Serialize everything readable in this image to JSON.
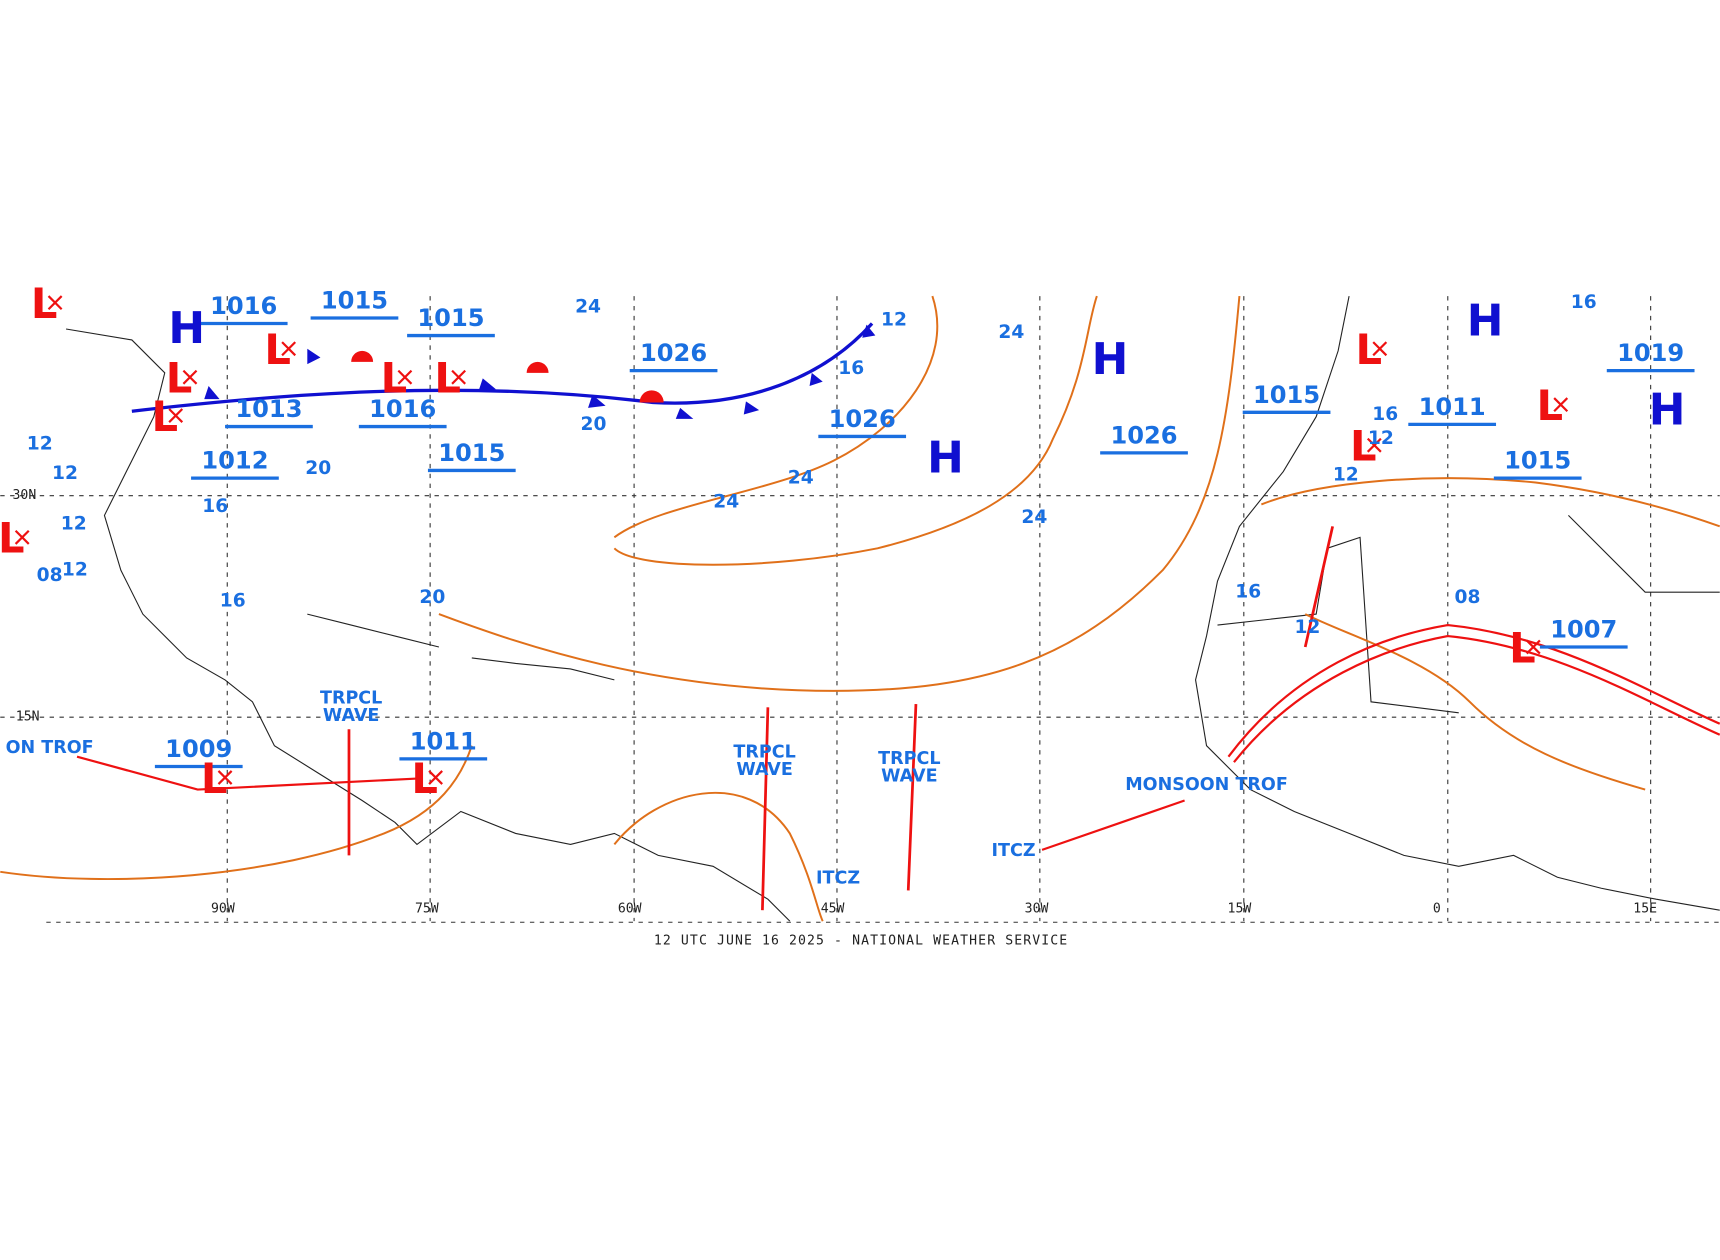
{
  "caption": "12 UTC JUNE 16 2025 - NATIONAL WEATHER SERVICE",
  "lon_labels": [
    "90W",
    "75W",
    "60W",
    "45W",
    "30W",
    "15W",
    "0",
    "15E"
  ],
  "lat_labels": [
    "30N",
    "15N"
  ],
  "pressure_labels": [
    "1016",
    "1015",
    "1015",
    "1026",
    "1013",
    "1016",
    "1015",
    "1012",
    "1026",
    "1026",
    "1015",
    "1011",
    "1019",
    "1015",
    "1007",
    "1009",
    "1011"
  ],
  "highs": [
    "H",
    "H",
    "H",
    "H",
    "H"
  ],
  "lows": [
    "L",
    "L",
    "L",
    "L",
    "L",
    "L",
    "L",
    "L",
    "L",
    "L",
    "L",
    "L",
    "L"
  ],
  "isobar_labels": [
    "24",
    "12",
    "16",
    "20",
    "24",
    "24",
    "24",
    "24",
    "20",
    "16",
    "16",
    "20",
    "12",
    "12",
    "12",
    "12",
    "08",
    "16",
    "12",
    "12",
    "16",
    "12",
    "08",
    "16"
  ],
  "features": [
    {
      "line1": "TRPCL",
      "line2": "WAVE"
    },
    {
      "line1": "TRPCL",
      "line2": "WAVE"
    },
    {
      "line1": "TRPCL",
      "line2": "WAVE"
    },
    {
      "line1": "ITCZ"
    },
    {
      "line1": "ITCZ"
    },
    {
      "line1": "MONSOON TROF"
    },
    {
      "line1": "ON TROF"
    }
  ]
}
